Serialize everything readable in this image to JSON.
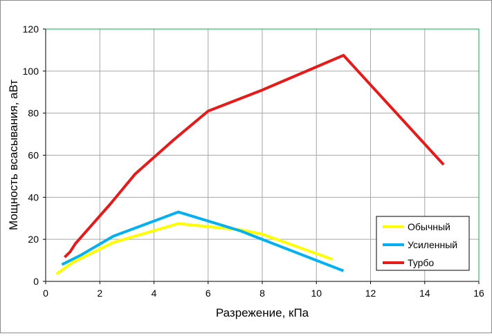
{
  "chart_data": {
    "type": "line",
    "title": "",
    "xlabel": "Разрежение, кПа",
    "ylabel": "Мощность всасывания, аВт",
    "xlim": [
      0,
      16
    ],
    "ylim": [
      0,
      120
    ],
    "x_ticks": [
      0,
      2,
      4,
      6,
      8,
      10,
      12,
      14,
      16
    ],
    "y_ticks": [
      0,
      20,
      40,
      60,
      80,
      100,
      120
    ],
    "grid": true,
    "legend_position": "bottom-right",
    "series": [
      {
        "name": "Обычный",
        "color": "#ffff00",
        "points": [
          [
            0.4,
            3.5
          ],
          [
            1.0,
            9
          ],
          [
            2.5,
            18.5
          ],
          [
            4.9,
            27.5
          ],
          [
            7.2,
            24.5
          ],
          [
            8.0,
            22.5
          ],
          [
            10.6,
            10.5
          ]
        ]
      },
      {
        "name": "Усиленный",
        "color": "#00b0f0",
        "points": [
          [
            0.6,
            8
          ],
          [
            1.3,
            12.5
          ],
          [
            2.5,
            21.5
          ],
          [
            4.9,
            33
          ],
          [
            7.2,
            24
          ],
          [
            8.0,
            20
          ],
          [
            11.0,
            5
          ]
        ]
      },
      {
        "name": "Турбо",
        "color": "#e31b1b",
        "points": [
          [
            0.7,
            11.5
          ],
          [
            0.9,
            14
          ],
          [
            1.1,
            18
          ],
          [
            2.4,
            37
          ],
          [
            3.3,
            51
          ],
          [
            4.7,
            67
          ],
          [
            6.0,
            81
          ],
          [
            8.0,
            91
          ],
          [
            11.0,
            107.5
          ],
          [
            14.7,
            55.5
          ]
        ]
      }
    ]
  }
}
